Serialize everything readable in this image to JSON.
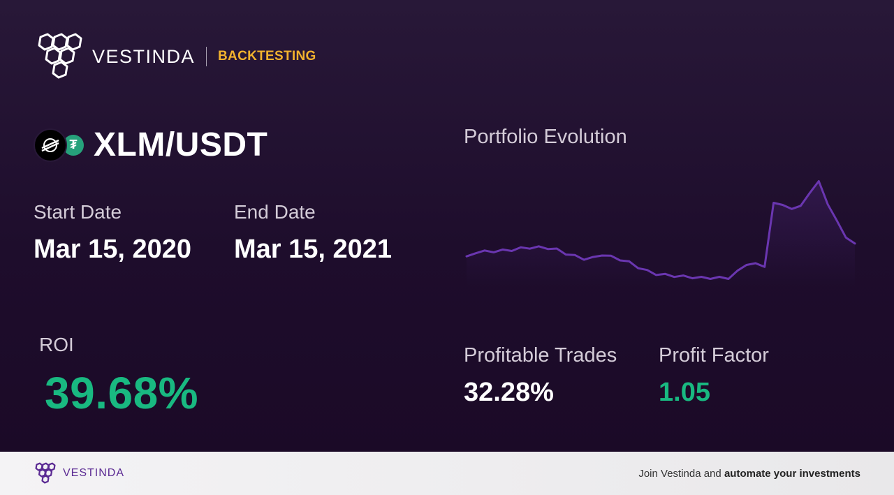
{
  "brand": {
    "name": "VESTINDA",
    "tag": "BACKTESTING",
    "logo_icon": "hexagon-cluster-logo-icon"
  },
  "pair": {
    "title": "XLM/USDT",
    "base_icon": "stellar-icon",
    "quote_icon": "tether-icon",
    "quote_glyph": "₮"
  },
  "dates": {
    "start_label": "Start Date",
    "start_value": "Mar 15, 2020",
    "end_label": "End Date",
    "end_value": "Mar 15, 2021"
  },
  "roi": {
    "label": "ROI",
    "value": "39.68%"
  },
  "chart": {
    "title": "Portfolio Evolution"
  },
  "stats": {
    "profitable_label": "Profitable Trades",
    "profitable_value": "32.28%",
    "factor_label": "Profit Factor",
    "factor_value": "1.05"
  },
  "footer": {
    "name": "VESTINDA",
    "cta_prefix": "Join Vestinda and",
    "cta_bold": "automate your investments"
  },
  "colors": {
    "accent_green": "#19b981",
    "accent_gold": "#f1b22e",
    "line_purple": "#6a36b0",
    "bg": "#1f0e2c"
  },
  "chart_data": {
    "type": "line",
    "x_range": [
      "2020-03-15",
      "2021-03-15"
    ],
    "series": [
      {
        "values": [
          0.9,
          1.06,
          1.08,
          1.09,
          1.11,
          1.13,
          1.18,
          1.2,
          1.21,
          1.19,
          1.14,
          1.02,
          0.94,
          0.86,
          0.88,
          0.99,
          0.92,
          0.84,
          0.75,
          0.6,
          0.48,
          0.39,
          0.36,
          0.33,
          0.31,
          0.29,
          0.27,
          0.27,
          0.27,
          0.27,
          0.46,
          0.7,
          0.69,
          0.64,
          2.55,
          2.55,
          2.36,
          2.52,
          2.85,
          3.28,
          2.5,
          2.07,
          1.48,
          1.36
        ]
      }
    ],
    "grid": false,
    "legend": false
  }
}
